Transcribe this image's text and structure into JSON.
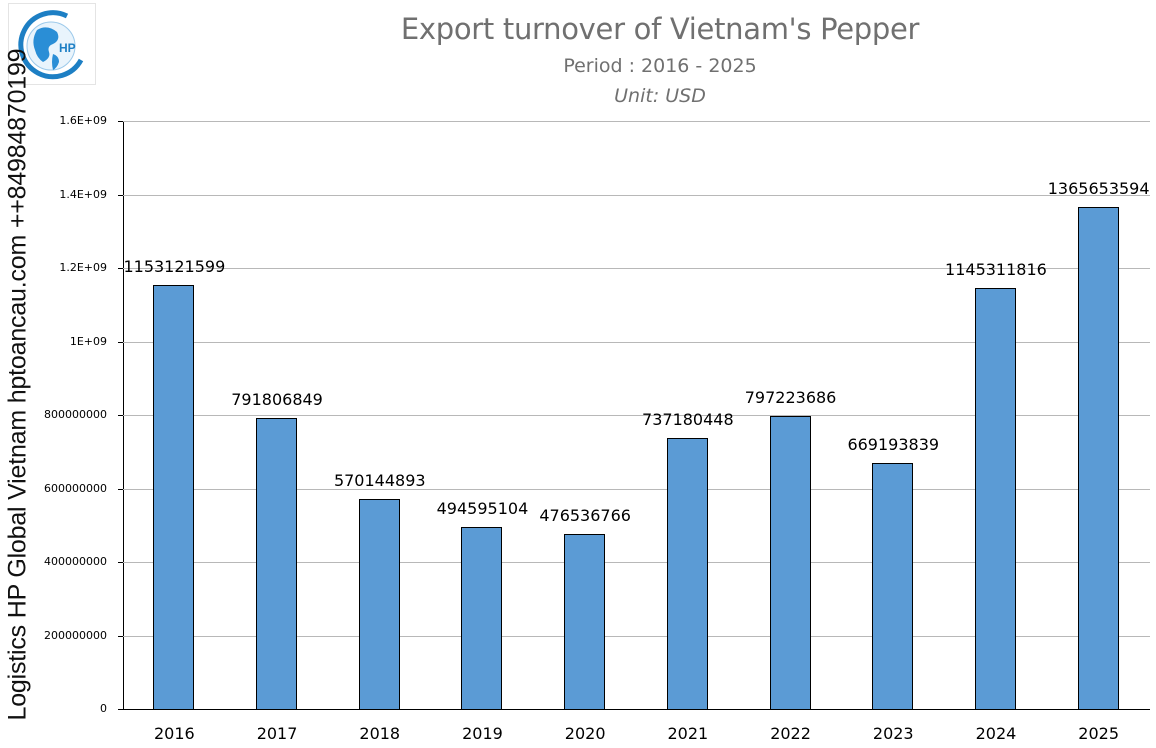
{
  "logo": {
    "text": "HP"
  },
  "watermark": "Logistics HP Global Vietnam hptoancau.com ++84984870199",
  "chart_data": {
    "type": "bar",
    "title": "Export turnover of Vietnam's Pepper",
    "subtitle": "Period : 2016 - 2025",
    "unit": "Unit: USD",
    "xlabel": "",
    "ylabel": "",
    "ylim": [
      0,
      1600000000
    ],
    "grid": true,
    "legend": "none",
    "bar_color": "#5b9bd5",
    "yticks": [
      "0",
      "200000000",
      "400000000",
      "600000000",
      "800000000",
      "1E+09",
      "1.2E+09",
      "1.4E+09",
      "1.6E+09"
    ],
    "categories": [
      "2016",
      "2017",
      "2018",
      "2019",
      "2020",
      "2021",
      "2022",
      "2023",
      "2024",
      "2025"
    ],
    "values": [
      1153121599,
      791806849,
      570144893,
      494595104,
      476536766,
      737180448,
      797223686,
      669193839,
      1145311816,
      1365653594
    ],
    "labels": [
      "1153121599",
      "791806849",
      "570144893",
      "494595104",
      "476536766",
      "737180448",
      "797223686",
      "669193839",
      "1145311816",
      "1365653594"
    ]
  }
}
